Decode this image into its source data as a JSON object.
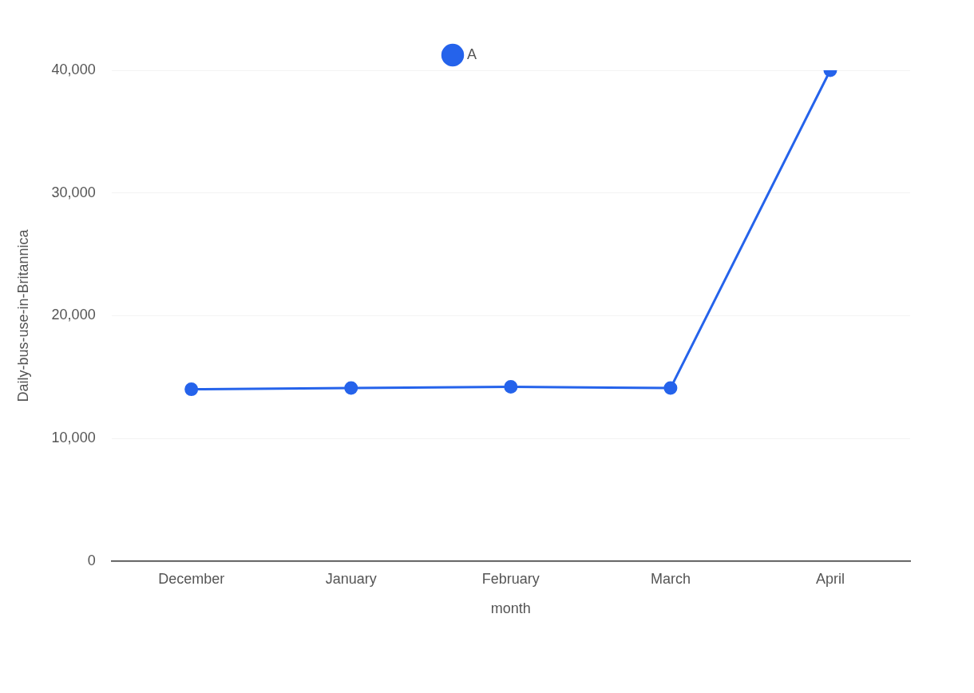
{
  "chart_data": {
    "type": "line",
    "xlabel": "month",
    "ylabel": "Daily-bus-use-in-Britannica",
    "categories": [
      "December",
      "January",
      "February",
      "March",
      "April"
    ],
    "series": [
      {
        "name": "A",
        "color": "#2563eb",
        "values": [
          14000,
          14100,
          14200,
          14100,
          40000
        ]
      }
    ],
    "ylim": [
      0,
      40000
    ],
    "yticks": [
      0,
      {
        "value": 10000,
        "label": "10,000"
      },
      {
        "value": 20000,
        "label": "20,000"
      },
      {
        "value": 30000,
        "label": "30,000"
      },
      {
        "value": 40000,
        "label": "40,000"
      }
    ],
    "grid": "y",
    "legend": "top",
    "marker": "circle",
    "line_style": "solid"
  }
}
